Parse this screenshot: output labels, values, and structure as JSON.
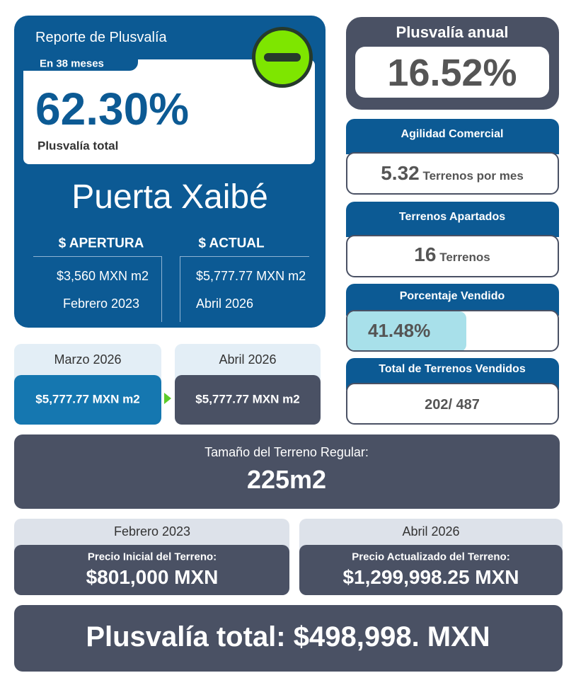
{
  "report": {
    "title": "Reporte de Plusvalía",
    "period": "En 38 meses",
    "total_percent": "62.30%",
    "total_label": "Plusvalía total",
    "development": "Puerta Xaibé",
    "opening": {
      "heading": "$ APERTURA",
      "price": "$3,560 MXN m2",
      "date": "Febrero 2023"
    },
    "current": {
      "heading": "$ ACTUAL",
      "price": "$5,777.77 MXN m2",
      "date": "Abril 2026"
    }
  },
  "annual": {
    "title": "Plusvalía anual",
    "value": "16.52%"
  },
  "stats": [
    {
      "title": "Agilidad Comercial",
      "value": "5.32",
      "unit": "Terrenos por mes"
    },
    {
      "title": "Terrenos Apartados",
      "value": "16",
      "unit": "Terrenos"
    },
    {
      "title": "Porcentaje Vendido",
      "value": "41.48%"
    },
    {
      "title": "Total de Terrenos Vendidos",
      "value": "202/ 487"
    }
  ],
  "monthly": [
    {
      "month": "Marzo 2026",
      "price": "$5,777.77 MXN m2"
    },
    {
      "month": "Abril 2026",
      "price": "$5,777.77 MXN m2"
    }
  ],
  "lot_size": {
    "label": "Tamaño del Terreno Regular:",
    "value": "225m2"
  },
  "prices": [
    {
      "date": "Febrero 2023",
      "label": "Precio Inicial del Terreno:",
      "value": "$801,000 MXN"
    },
    {
      "date": "Abril 2026",
      "label": "Precio Actualizado del Terreno:",
      "value": "$1,299,998.25 MXN"
    }
  ],
  "gain": "Plusvalía total: $498,998. MXN"
}
